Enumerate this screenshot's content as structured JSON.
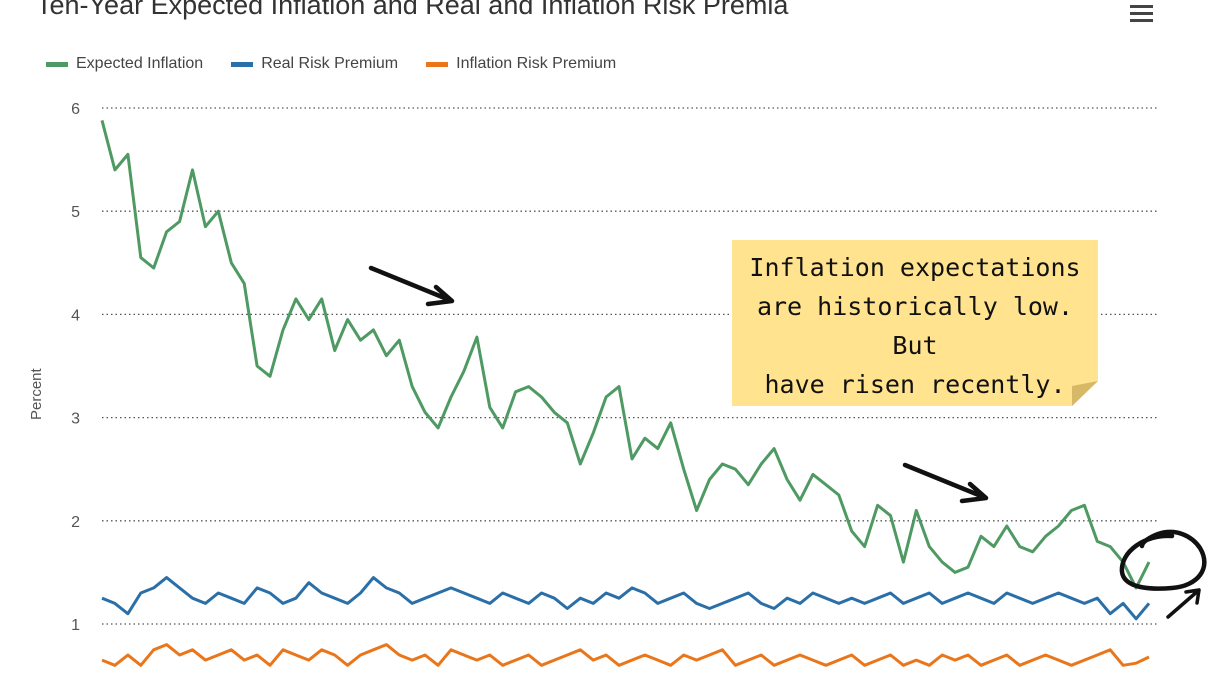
{
  "chart": {
    "title": "Ten-Year Expected Inflation and Real and Inflation Risk Premia",
    "menu_icon": "hamburger-menu-icon",
    "y_axis_title": "Percent",
    "legend": [
      {
        "label": "Expected Inflation",
        "color": "#4e9a62"
      },
      {
        "label": "Real Risk Premium",
        "color": "#2a6fa8"
      },
      {
        "label": "Inflation Risk Premium",
        "color": "#e9761a"
      }
    ]
  },
  "annotation": {
    "note_text": "Inflation expectations\nare historically low. But\nhave risen recently."
  },
  "chart_data": {
    "type": "line",
    "ylabel": "Percent",
    "ylim": [
      0.55,
      6.05
    ],
    "yticks": [
      1,
      2,
      3,
      4,
      5,
      6
    ],
    "grid": true,
    "legend_position": "top-left",
    "x_index_range": [
      0,
      100
    ],
    "series": [
      {
        "name": "Expected Inflation",
        "color": "#4e9a62",
        "values": [
          5.88,
          5.4,
          5.55,
          4.55,
          4.45,
          4.8,
          4.9,
          5.4,
          4.85,
          5.0,
          4.5,
          4.3,
          3.5,
          3.4,
          3.85,
          4.15,
          3.95,
          4.15,
          3.65,
          3.95,
          3.75,
          3.85,
          3.6,
          3.75,
          3.3,
          3.05,
          2.9,
          3.2,
          3.45,
          3.78,
          3.1,
          2.9,
          3.25,
          3.3,
          3.2,
          3.05,
          2.95,
          2.55,
          2.85,
          3.2,
          3.3,
          2.6,
          2.8,
          2.7,
          2.95,
          2.5,
          2.1,
          2.4,
          2.55,
          2.5,
          2.35,
          2.55,
          2.7,
          2.4,
          2.2,
          2.45,
          2.35,
          2.25,
          1.9,
          1.75,
          2.15,
          2.05,
          1.6,
          2.1,
          1.75,
          1.6,
          1.5,
          1.55,
          1.85,
          1.75,
          1.95,
          1.75,
          1.7,
          1.85,
          1.95,
          2.1,
          2.15,
          1.8,
          1.75,
          1.6,
          1.35,
          1.6
        ]
      },
      {
        "name": "Real Risk Premium",
        "color": "#2a6fa8",
        "values": [
          1.25,
          1.2,
          1.1,
          1.3,
          1.35,
          1.45,
          1.35,
          1.25,
          1.2,
          1.3,
          1.25,
          1.2,
          1.35,
          1.3,
          1.2,
          1.25,
          1.4,
          1.3,
          1.25,
          1.2,
          1.3,
          1.45,
          1.35,
          1.3,
          1.2,
          1.25,
          1.3,
          1.35,
          1.3,
          1.25,
          1.2,
          1.3,
          1.25,
          1.2,
          1.3,
          1.25,
          1.15,
          1.25,
          1.2,
          1.3,
          1.25,
          1.35,
          1.3,
          1.2,
          1.25,
          1.3,
          1.2,
          1.15,
          1.2,
          1.25,
          1.3,
          1.2,
          1.15,
          1.25,
          1.2,
          1.3,
          1.25,
          1.2,
          1.25,
          1.2,
          1.25,
          1.3,
          1.2,
          1.25,
          1.3,
          1.2,
          1.25,
          1.3,
          1.25,
          1.2,
          1.3,
          1.25,
          1.2,
          1.25,
          1.3,
          1.25,
          1.2,
          1.25,
          1.1,
          1.2,
          1.05,
          1.2
        ]
      },
      {
        "name": "Inflation Risk Premium",
        "color": "#e9761a",
        "values": [
          0.65,
          0.6,
          0.7,
          0.6,
          0.75,
          0.8,
          0.7,
          0.75,
          0.65,
          0.7,
          0.75,
          0.65,
          0.7,
          0.6,
          0.75,
          0.7,
          0.65,
          0.75,
          0.7,
          0.6,
          0.7,
          0.75,
          0.8,
          0.7,
          0.65,
          0.7,
          0.6,
          0.75,
          0.7,
          0.65,
          0.7,
          0.6,
          0.65,
          0.7,
          0.6,
          0.65,
          0.7,
          0.75,
          0.65,
          0.7,
          0.6,
          0.65,
          0.7,
          0.65,
          0.6,
          0.7,
          0.65,
          0.7,
          0.75,
          0.6,
          0.65,
          0.7,
          0.6,
          0.65,
          0.7,
          0.65,
          0.6,
          0.65,
          0.7,
          0.6,
          0.65,
          0.7,
          0.6,
          0.65,
          0.6,
          0.7,
          0.65,
          0.7,
          0.6,
          0.65,
          0.7,
          0.6,
          0.65,
          0.7,
          0.65,
          0.6,
          0.65,
          0.7,
          0.75,
          0.6,
          0.62,
          0.68
        ]
      }
    ]
  }
}
